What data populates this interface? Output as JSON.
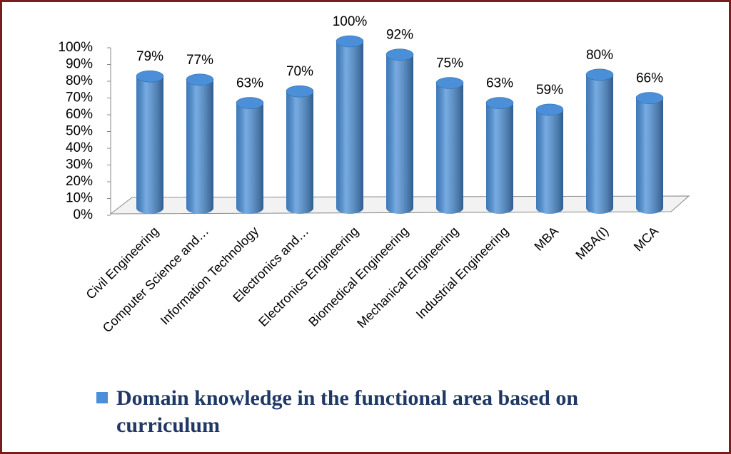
{
  "chart_data": {
    "type": "bar3d",
    "categories": [
      "Civil Engineering",
      "Computer Science and…",
      "Information Technology",
      "Electronics and…",
      "Electronics Engineering",
      "Biomedical Engineering",
      "Mechanical Engineering",
      "Industrial Engineering",
      "MBA",
      "MBA(I)",
      "MCA"
    ],
    "series": [
      {
        "name": "Domain knowledge in the functional area based on curriculum",
        "color": "#4a8fd8",
        "values": [
          79,
          77,
          63,
          70,
          100,
          92,
          75,
          63,
          59,
          80,
          66
        ],
        "value_labels": [
          "79%",
          "77%",
          "63%",
          "70%",
          "100%",
          "92%",
          "75%",
          "63%",
          "59%",
          "80%",
          "66%"
        ]
      }
    ],
    "ylim": [
      0,
      100
    ],
    "yticks": [
      {
        "value": 0,
        "label": "0%"
      },
      {
        "value": 10,
        "label": "10%"
      },
      {
        "value": 20,
        "label": "20%"
      },
      {
        "value": 30,
        "label": "30%"
      },
      {
        "value": 40,
        "label": "40%"
      },
      {
        "value": 50,
        "label": "50%"
      },
      {
        "value": 60,
        "label": "60%"
      },
      {
        "value": 70,
        "label": "70%"
      },
      {
        "value": 80,
        "label": "80%"
      },
      {
        "value": 90,
        "label": "90%"
      },
      {
        "value": 100,
        "label": "100%"
      }
    ],
    "legend": "bottom"
  }
}
